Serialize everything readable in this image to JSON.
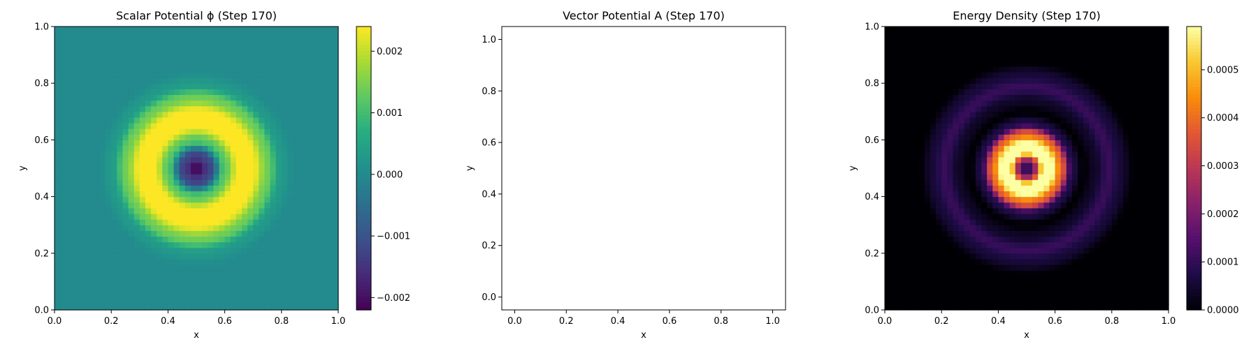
{
  "chart_data": [
    {
      "type": "heatmap",
      "title": "Scalar Potential ϕ (Step 170)",
      "xlabel": "x",
      "ylabel": "y",
      "xlim": [
        0.0,
        1.0
      ],
      "ylim": [
        0.0,
        1.0
      ],
      "xticks": [
        "0.0",
        "0.2",
        "0.4",
        "0.6",
        "0.8",
        "1.0"
      ],
      "yticks": [
        "0.0",
        "0.2",
        "0.4",
        "0.6",
        "0.8",
        "1.0"
      ],
      "colormap": "viridis",
      "colorbar": {
        "range": [
          -0.0022,
          0.0024
        ],
        "ticks": [
          {
            "value": 0.002,
            "label": "0.002"
          },
          {
            "value": 0.001,
            "label": "0.001"
          },
          {
            "value": 0.0,
            "label": "0.000"
          },
          {
            "value": -0.001,
            "label": "−0.001"
          },
          {
            "value": -0.002,
            "label": "−0.002"
          }
        ]
      },
      "field": {
        "description_values": "radially symmetric about center",
        "center": [
          0.5,
          0.5
        ],
        "grid": 50,
        "radial_profile": {
          "r": [
            0.0,
            0.05,
            0.1,
            0.15,
            0.2,
            0.25,
            0.3,
            0.35,
            0.45,
            0.71
          ],
          "value": [
            -0.0022,
            -0.0012,
            0.0012,
            0.0024,
            0.0024,
            0.0014,
            0.0003,
            0.0,
            0.0,
            0.0
          ]
        }
      }
    },
    {
      "type": "line",
      "title": "Vector Potential A (Step 170)",
      "xlabel": "x",
      "ylabel": "y",
      "xlim": [
        -0.05,
        1.05
      ],
      "ylim": [
        -0.05,
        1.05
      ],
      "xticks": [
        "0.0",
        "0.2",
        "0.4",
        "0.6",
        "0.8",
        "1.0"
      ],
      "yticks": [
        "0.0",
        "0.2",
        "0.4",
        "0.6",
        "0.8",
        "1.0"
      ],
      "series": []
    },
    {
      "type": "heatmap",
      "title": "Energy Density (Step 170)",
      "xlabel": "x",
      "ylabel": "y",
      "xlim": [
        0.0,
        1.0
      ],
      "ylim": [
        0.0,
        1.0
      ],
      "xticks": [
        "0.0",
        "0.2",
        "0.4",
        "0.6",
        "0.8",
        "1.0"
      ],
      "yticks": [
        "0.0",
        "0.2",
        "0.4",
        "0.6",
        "0.8",
        "1.0"
      ],
      "colormap": "inferno",
      "colorbar": {
        "range": [
          0.0,
          0.00059
        ],
        "ticks": [
          {
            "value": 0.0005,
            "label": "0.0005"
          },
          {
            "value": 0.0004,
            "label": "0.0004"
          },
          {
            "value": 0.0003,
            "label": "0.0003"
          },
          {
            "value": 0.0002,
            "label": "0.0002"
          },
          {
            "value": 0.0001,
            "label": "0.0001"
          },
          {
            "value": 0.0,
            "label": "0.0000"
          }
        ]
      },
      "field": {
        "center": [
          0.5,
          0.5
        ],
        "grid": 50,
        "radial_profile": {
          "r": [
            0.0,
            0.03,
            0.06,
            0.09,
            0.12,
            0.16,
            0.2,
            0.24,
            0.29,
            0.33,
            0.38,
            0.71
          ],
          "value": [
            0.0,
            0.00025,
            0.00059,
            0.00059,
            0.0004,
            8e-05,
            0.0,
            4e-05,
            0.00011,
            6e-05,
            0.0,
            0.0
          ]
        }
      }
    }
  ]
}
